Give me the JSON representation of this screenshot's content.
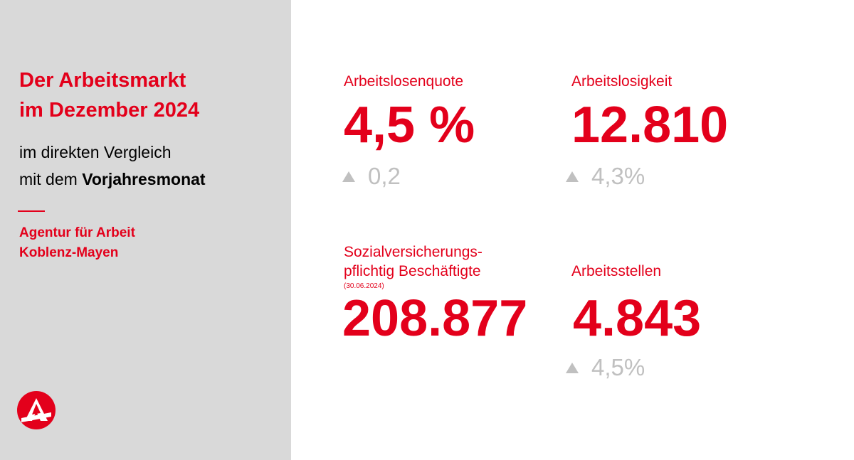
{
  "left": {
    "title_line1": "Der Arbeitsmarkt",
    "title_line2": "im Dezember 2024",
    "subtitle_line1": "im direkten Vergleich",
    "subtitle_line2_prefix": "mit dem ",
    "subtitle_line2_bold": "Vorjahresmonat",
    "agency_line1": "Agentur für Arbeit",
    "agency_line2": "Koblenz-Mayen",
    "logo_icon": "agentur-fuer-arbeit-logo-icon"
  },
  "metrics": {
    "arbeitslosenquote": {
      "label": "Arbeitslosenquote",
      "value": "4,5 %",
      "change": "0,2",
      "change_icon": "triangle-up-icon"
    },
    "arbeitslosigkeit": {
      "label": "Arbeitslosigkeit",
      "value": "12.810",
      "change": "4,3%",
      "change_icon": "triangle-up-icon"
    },
    "beschaeftigte": {
      "label_line1": "Sozialversicherungs-",
      "label_line2": "pflichtig Beschäftigte",
      "note": "(30.06.2024)",
      "value": "208.877"
    },
    "arbeitsstellen": {
      "label": "Arbeitsstellen",
      "value": "4.843",
      "change": "4,5%",
      "change_icon": "triangle-up-icon"
    }
  },
  "colors": {
    "brand_red": "#e3001b",
    "panel_gray": "#d9d9d9",
    "change_gray": "#c0c0c0"
  }
}
